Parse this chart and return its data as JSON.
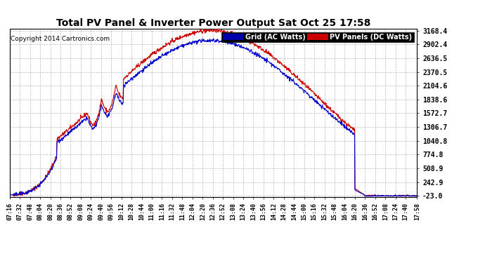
{
  "title": "Total PV Panel & Inverter Power Output Sat Oct 25 17:58",
  "copyright": "Copyright 2014 Cartronics.com",
  "legend_items": [
    {
      "label": "Grid (AC Watts)",
      "color": "#0000cc",
      "bg": "#0000aa"
    },
    {
      "label": "PV Panels (DC Watts)",
      "color": "#cc0000",
      "bg": "#cc0000"
    }
  ],
  "yticks": [
    3168.4,
    2902.4,
    2636.5,
    2370.5,
    2104.6,
    1838.6,
    1572.7,
    1306.7,
    1040.8,
    774.8,
    508.9,
    242.9,
    -23.0
  ],
  "ymin": -23.0,
  "ymax": 3168.4,
  "xtick_labels": [
    "07:16",
    "07:32",
    "07:48",
    "08:04",
    "08:20",
    "08:36",
    "08:52",
    "09:08",
    "09:24",
    "09:40",
    "09:56",
    "10:12",
    "10:28",
    "10:44",
    "11:00",
    "11:16",
    "11:32",
    "11:48",
    "12:04",
    "12:20",
    "12:36",
    "12:52",
    "13:08",
    "13:24",
    "13:40",
    "13:56",
    "14:12",
    "14:28",
    "14:44",
    "15:00",
    "15:16",
    "15:32",
    "15:48",
    "16:04",
    "16:20",
    "16:36",
    "16:52",
    "17:08",
    "17:24",
    "17:40",
    "17:58"
  ],
  "bg_color": "#ffffff",
  "plot_bg_color": "#ffffff",
  "grid_color": "#aaaaaa",
  "line_color_blue": "#0000cc",
  "line_color_red": "#cc0000"
}
